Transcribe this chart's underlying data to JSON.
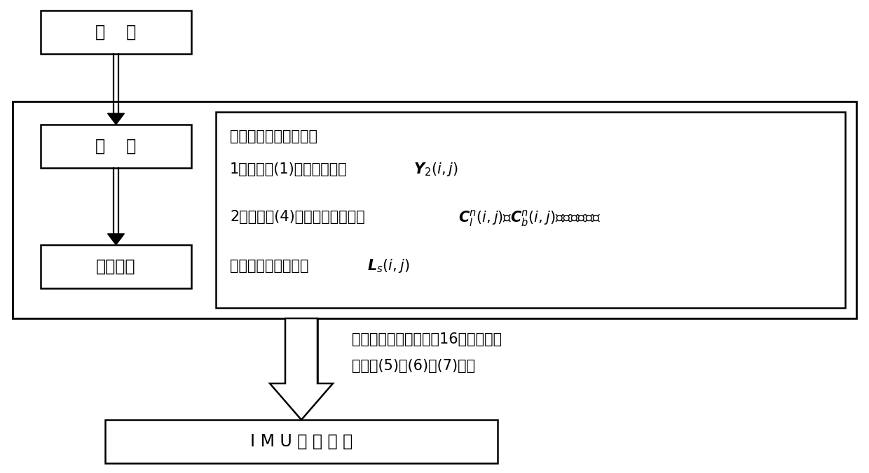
{
  "bg_color": "#ffffff",
  "box1_label": "对    准",
  "box2_label": "转    动",
  "box3_label": "静止测量",
  "box4_label": "I M U 误 差 参 数",
  "line1": "每次转动静止测量后，",
  "line2_pre": "1）根据式(1)拟合出观测量",
  "line2_math": "$\\boldsymbol{Y}_2(i,j)$",
  "line3_pre": "2）根据式(4)计算相应的矩阵为",
  "line3_math": "$\\boldsymbol{C}_l^n(i,j)$、$\\boldsymbol{C}_b^n(i,j)$，进一步得到",
  "line4_pre": "各误差参数系数向量",
  "line4_math": "$\\boldsymbol{L}_s(i,j)$",
  "ann1": "利用正四面体方案中的16次转动激励",
  "ann2": "结合式(5)、(6)、(7)可得"
}
